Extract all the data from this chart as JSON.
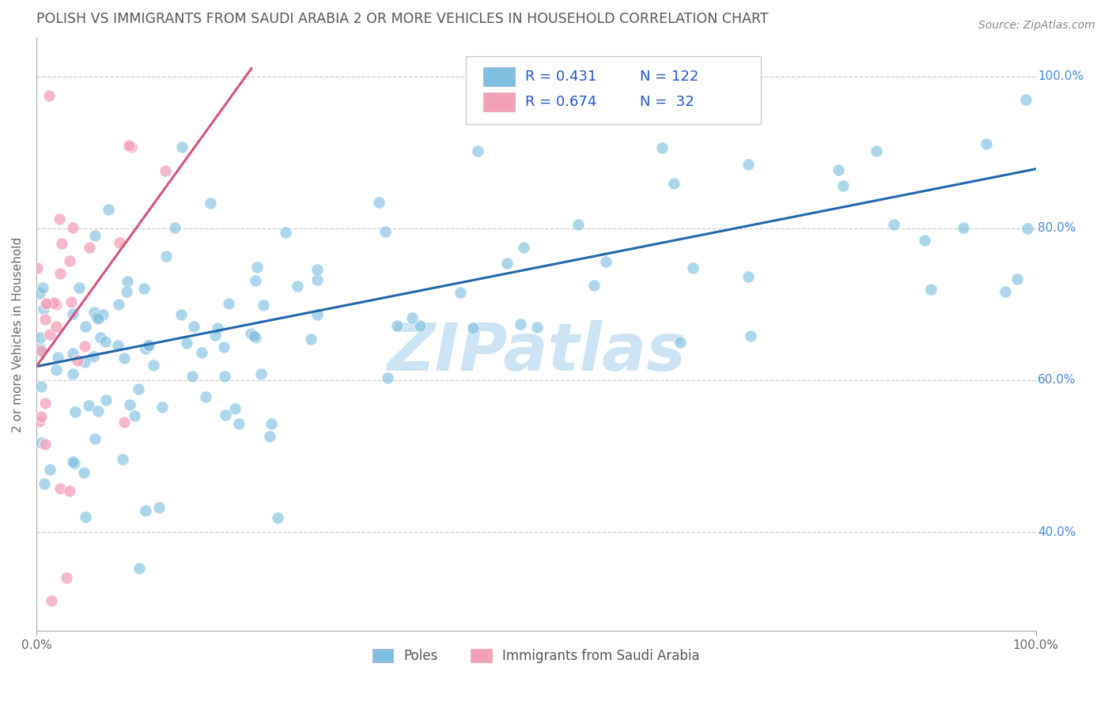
{
  "title": "POLISH VS IMMIGRANTS FROM SAUDI ARABIA 2 OR MORE VEHICLES IN HOUSEHOLD CORRELATION CHART",
  "source": "Source: ZipAtlas.com",
  "ylabel": "2 or more Vehicles in Household",
  "xlim": [
    0.0,
    1.0
  ],
  "ylim": [
    0.27,
    1.05
  ],
  "x_tick_labels": [
    "0.0%",
    "100.0%"
  ],
  "y_tick_labels": [
    "40.0%",
    "60.0%",
    "80.0%",
    "100.0%"
  ],
  "y_tick_values": [
    0.4,
    0.6,
    0.8,
    1.0
  ],
  "legend_r1": "0.431",
  "legend_n1": "122",
  "legend_r2": "0.674",
  "legend_n2": " 32",
  "legend_label1": "Poles",
  "legend_label2": "Immigrants from Saudi Arabia",
  "blue_color": "#7fbfdf",
  "pink_color": "#f4a0b8",
  "blue_line_color": "#2166ac",
  "pink_line_color": "#d4547a",
  "title_color": "#555555",
  "legend_text_color": "#2255cc",
  "right_tick_color": "#4488dd",
  "watermark_color": "#cce4f4",
  "blue_trend_x0": 0.0,
  "blue_trend_x1": 1.0,
  "blue_trend_y0": 0.618,
  "blue_trend_y1": 0.878,
  "pink_trend_x0": 0.0,
  "pink_trend_x1": 0.215,
  "pink_trend_y0": 0.618,
  "pink_trend_y1": 1.01
}
